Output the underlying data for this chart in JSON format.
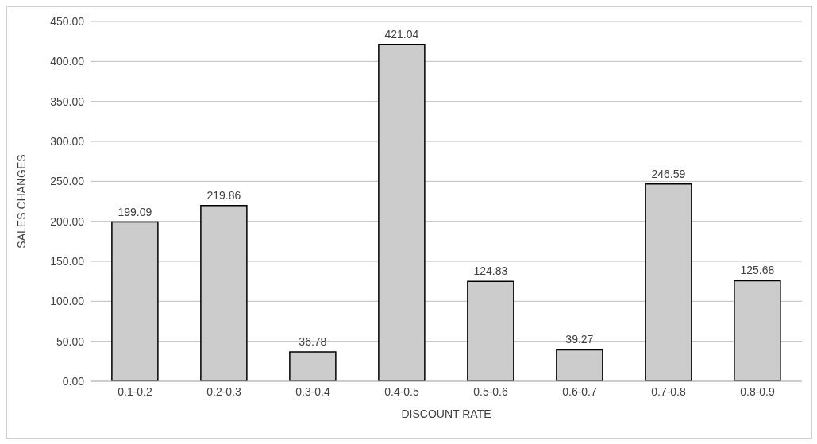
{
  "chart_data": {
    "type": "bar",
    "xlabel": "DISCOUNT RATE",
    "ylabel": "SALES CHANGES",
    "categories": [
      "0.1-0.2",
      "0.2-0.3",
      "0.3-0.4",
      "0.4-0.5",
      "0.5-0.6",
      "0.6-0.7",
      "0.7-0.8",
      "0.8-0.9"
    ],
    "values": [
      199.09,
      219.86,
      36.78,
      421.04,
      124.83,
      39.27,
      246.59,
      125.68
    ],
    "color": "#cccccc",
    "ylim": [
      0,
      450
    ],
    "yticks": [
      {
        "value": 0,
        "label": "0.00"
      },
      {
        "value": 50,
        "label": "50.00"
      },
      {
        "value": 100,
        "label": "100.00"
      },
      {
        "value": 150,
        "label": "150.00"
      },
      {
        "value": 200,
        "label": "200.00"
      },
      {
        "value": 250,
        "label": "250.00"
      },
      {
        "value": 300,
        "label": "300.00"
      },
      {
        "value": 350,
        "label": "350.00"
      },
      {
        "value": 400,
        "label": "400.00"
      },
      {
        "value": 450,
        "label": "450.00"
      }
    ],
    "grid": "y",
    "data_labels": true
  }
}
